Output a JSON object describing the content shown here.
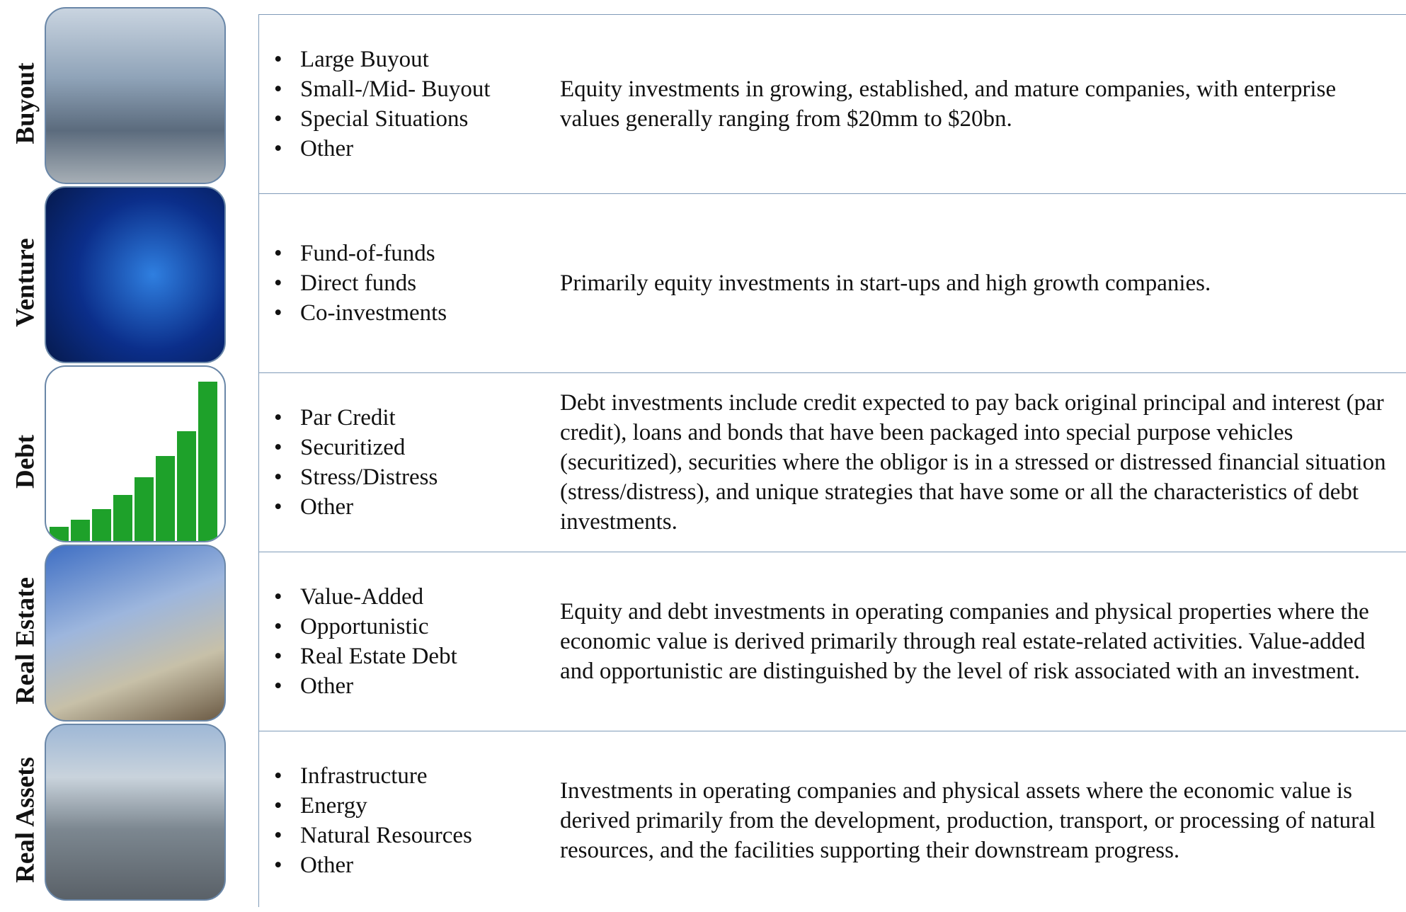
{
  "rows": [
    {
      "label": "Buyout",
      "bullets": [
        "Large Buyout",
        "Small-/Mid- Buyout",
        "Special Situations",
        "Other"
      ],
      "description": "Equity investments in growing, established, and mature companies, with enterprise values generally ranging from $20mm to $20bn."
    },
    {
      "label": "Venture",
      "bullets": [
        "Fund-of-funds",
        "Direct funds",
        "Co-investments"
      ],
      "description": "Primarily equity investments in start-ups and high growth companies."
    },
    {
      "label": "Debt",
      "bullets": [
        "Par Credit",
        "Securitized",
        "Stress/Distress",
        "Other"
      ],
      "description": "Debt investments include credit expected to pay back original principal and interest (par credit), loans and bonds that have been packaged into special purpose vehicles (securitized), securities where the obligor is in a stressed or distressed financial situation (stress/distress), and unique strategies that have some or all the characteristics of debt investments."
    },
    {
      "label": "Real Estate",
      "bullets": [
        "Value-Added",
        "Opportunistic",
        "Real Estate Debt",
        "Other"
      ],
      "description": "Equity and debt investments in operating companies and physical properties where the economic value is derived primarily through real estate-related activities. Value-added and opportunistic are distinguished by the level of risk associated with an investment."
    },
    {
      "label": "Real Assets",
      "bullets": [
        "Infrastructure",
        "Energy",
        "Natural Resources",
        "Other"
      ],
      "description": "Investments in operating companies and physical assets where the economic value is derived primarily from the development, production, transport, or processing of natural resources, and the facilities supporting their downstream progress."
    }
  ]
}
